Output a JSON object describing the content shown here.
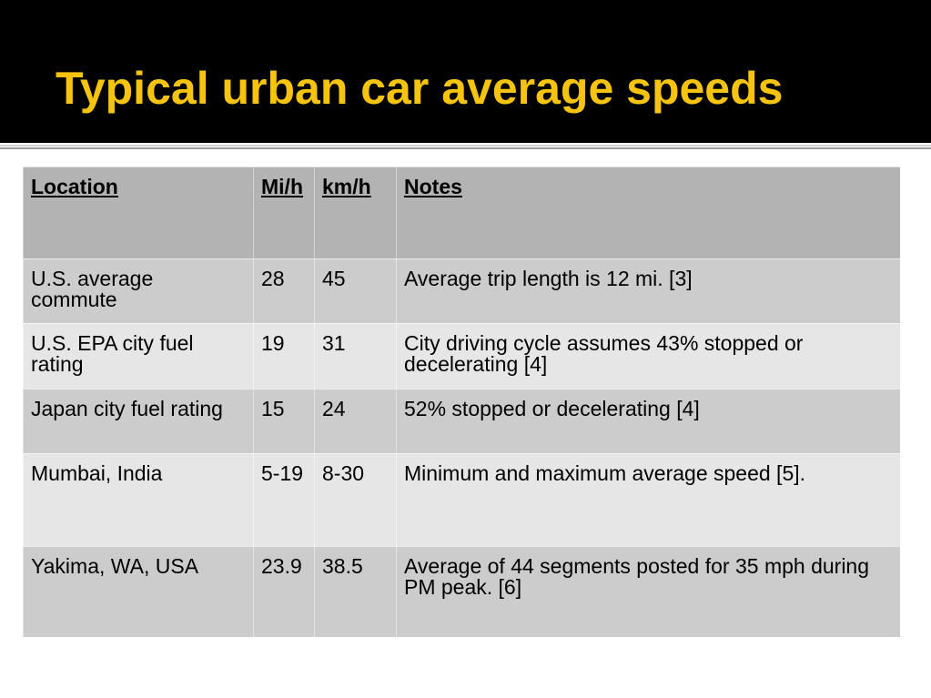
{
  "slide": {
    "title": "Typical urban car average speeds",
    "colors": {
      "header_bg": "#000000",
      "title": "#f6c40e"
    }
  },
  "table": {
    "columns": [
      "Location",
      "Mi/h",
      "km/h",
      "Notes"
    ],
    "rows": [
      [
        "U.S. average commute",
        "28",
        "45",
        "Average trip length is 12 mi. [3]"
      ],
      [
        "U.S. EPA city fuel rating",
        "19",
        "31",
        "City driving cycle assumes 43% stopped or decelerating [4]"
      ],
      [
        "Japan city fuel rating",
        "15",
        "24",
        "52% stopped or decelerating [4]"
      ],
      [
        "Mumbai, India",
        "5-19",
        "8-30",
        "Minimum and maximum average speed [5]."
      ],
      [
        "Yakima, WA, USA",
        "23.9",
        "38.5",
        "Average of 44 segments posted for 35 mph during PM peak. [6]"
      ]
    ],
    "colors": {
      "header_row": "#b3b3b3",
      "row_dark": "#cccccc",
      "row_light": "#e6e6e6"
    }
  }
}
